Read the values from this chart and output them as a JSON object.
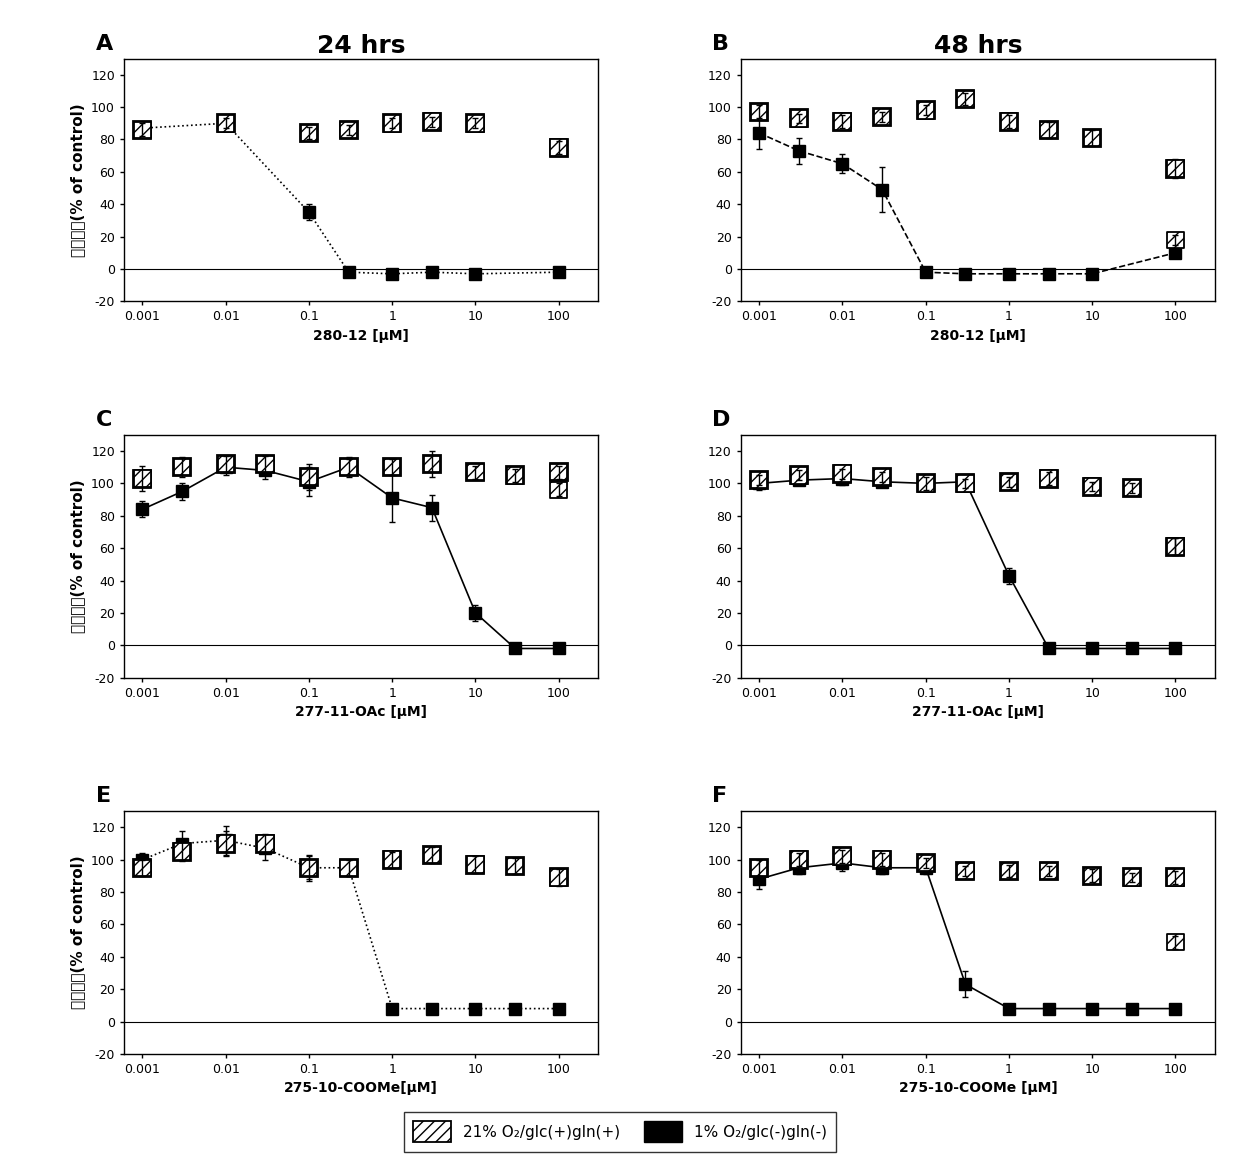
{
  "panels": [
    {
      "label": "A",
      "col_title": "24 hrs",
      "xlabel": "280-12 [μM]",
      "ylim": [
        -20,
        130
      ],
      "yticks": [
        -20,
        0,
        20,
        40,
        60,
        80,
        100,
        120
      ],
      "s1_x": [
        0.001,
        0.01,
        0.1,
        0.3,
        1,
        3,
        10,
        100
      ],
      "s1_y": [
        86,
        90,
        84,
        86,
        90,
        91,
        90,
        75
      ],
      "s1_e": [
        4,
        3,
        4,
        3,
        3,
        3,
        3,
        4
      ],
      "s2_x": [
        0.001,
        0.01,
        0.1,
        0.3,
        1,
        3,
        10,
        100
      ],
      "s2_y": [
        87,
        90,
        35,
        -2,
        -3,
        -2,
        -3,
        -2
      ],
      "s2_e": [
        4,
        3,
        5,
        1,
        1,
        1,
        1,
        1
      ],
      "s1_lone_x": [],
      "s1_lone_y": [],
      "s1_lone_e": [],
      "s2_line": "dotted",
      "has_s1_lone": false
    },
    {
      "label": "B",
      "col_title": "48 hrs",
      "xlabel": "280-12 [μM]",
      "ylim": [
        -20,
        130
      ],
      "yticks": [
        -20,
        0,
        20,
        40,
        60,
        80,
        100,
        120
      ],
      "s1_x": [
        0.001,
        0.003,
        0.01,
        0.03,
        0.1,
        0.3,
        1,
        3,
        10,
        100
      ],
      "s1_y": [
        97,
        93,
        91,
        94,
        98,
        105,
        91,
        86,
        81,
        62
      ],
      "s1_e": [
        4,
        3,
        4,
        3,
        3,
        4,
        4,
        5,
        5,
        6
      ],
      "s2_x": [
        0.001,
        0.003,
        0.01,
        0.03,
        0.1,
        0.3,
        1,
        3,
        10,
        100
      ],
      "s2_y": [
        84,
        73,
        65,
        49,
        -2,
        -3,
        -3,
        -3,
        -3,
        10
      ],
      "s2_e": [
        10,
        8,
        6,
        14,
        1,
        1,
        1,
        1,
        1,
        3
      ],
      "s1_lone_x": [
        100
      ],
      "s1_lone_y": [
        18
      ],
      "s1_lone_e": [
        3
      ],
      "s2_line": "dashed",
      "has_s1_lone": false
    },
    {
      "label": "C",
      "col_title": "",
      "xlabel": "277-11-OAc [μM]",
      "ylim": [
        -20,
        130
      ],
      "yticks": [
        -20,
        0,
        20,
        40,
        60,
        80,
        100,
        120
      ],
      "s1_x": [
        0.001,
        0.003,
        0.01,
        0.03,
        0.1,
        0.3,
        1,
        3,
        10,
        30,
        100
      ],
      "s1_y": [
        103,
        110,
        112,
        112,
        104,
        110,
        110,
        112,
        107,
        105,
        107
      ],
      "s1_e": [
        8,
        6,
        5,
        5,
        8,
        5,
        5,
        8,
        4,
        4,
        4
      ],
      "s2_x": [
        0.001,
        0.003,
        0.01,
        0.03,
        0.1,
        0.3,
        1,
        3,
        10,
        30,
        100
      ],
      "s2_y": [
        84,
        95,
        110,
        108,
        101,
        110,
        91,
        85,
        20,
        -2,
        -2
      ],
      "s2_e": [
        5,
        5,
        5,
        5,
        9,
        6,
        15,
        8,
        5,
        1,
        1
      ],
      "s1_lone_x": [
        100
      ],
      "s1_lone_y": [
        96
      ],
      "s1_lone_e": [
        4
      ],
      "s2_line": "solid",
      "has_s1_lone": false
    },
    {
      "label": "D",
      "col_title": "",
      "xlabel": "277-11-OAc [μM]",
      "ylim": [
        -20,
        130
      ],
      "yticks": [
        -20,
        0,
        20,
        40,
        60,
        80,
        100,
        120
      ],
      "s1_x": [
        0.001,
        0.003,
        0.01,
        0.03,
        0.1,
        0.3,
        1,
        3,
        10,
        30,
        100
      ],
      "s1_y": [
        102,
        105,
        106,
        104,
        100,
        100,
        101,
        103,
        98,
        97,
        61
      ],
      "s1_e": [
        3,
        3,
        3,
        3,
        4,
        3,
        3,
        4,
        3,
        3,
        5
      ],
      "s2_x": [
        0.001,
        0.003,
        0.01,
        0.03,
        0.1,
        0.3,
        1,
        3,
        10,
        30,
        100
      ],
      "s2_y": [
        100,
        102,
        103,
        101,
        100,
        101,
        43,
        -2,
        -2,
        -2,
        -2
      ],
      "s2_e": [
        4,
        3,
        4,
        3,
        4,
        3,
        5,
        1,
        1,
        1,
        1
      ],
      "s1_lone_x": [
        100
      ],
      "s1_lone_y": [
        61
      ],
      "s1_lone_e": [
        5
      ],
      "s2_line": "solid",
      "has_s1_lone": false
    },
    {
      "label": "E",
      "col_title": "",
      "xlabel": "275-10-COOMe[μM]",
      "ylim": [
        -20,
        130
      ],
      "yticks": [
        -20,
        0,
        20,
        40,
        60,
        80,
        100,
        120
      ],
      "s1_x": [
        0.001,
        0.003,
        0.01,
        0.03,
        0.1,
        0.3,
        1,
        3,
        10,
        30,
        100
      ],
      "s1_y": [
        95,
        105,
        110,
        110,
        95,
        95,
        100,
        103,
        97,
        96,
        89
      ],
      "s1_e": [
        5,
        6,
        8,
        6,
        8,
        5,
        5,
        5,
        5,
        5,
        5
      ],
      "s2_x": [
        0.001,
        0.003,
        0.01,
        0.03,
        0.1,
        0.3,
        1,
        3,
        10,
        30,
        100
      ],
      "s2_y": [
        100,
        110,
        112,
        107,
        95,
        95,
        8,
        8,
        8,
        8,
        8
      ],
      "s2_e": [
        4,
        8,
        9,
        7,
        7,
        5,
        2,
        2,
        2,
        2,
        2
      ],
      "s1_lone_x": [],
      "s1_lone_y": [],
      "s1_lone_e": [],
      "s2_line": "dotted",
      "has_s1_lone": false
    },
    {
      "label": "F",
      "col_title": "",
      "xlabel": "275-10-COOMe [μM]",
      "ylim": [
        -20,
        130
      ],
      "yticks": [
        -20,
        0,
        20,
        40,
        60,
        80,
        100,
        120
      ],
      "s1_x": [
        0.001,
        0.003,
        0.01,
        0.03,
        0.1,
        0.3,
        1,
        3,
        10,
        30,
        100
      ],
      "s1_y": [
        95,
        100,
        102,
        100,
        98,
        93,
        93,
        93,
        90,
        89,
        89
      ],
      "s1_e": [
        5,
        4,
        4,
        4,
        3,
        3,
        4,
        3,
        4,
        3,
        4
      ],
      "s2_x": [
        0.001,
        0.003,
        0.01,
        0.03,
        0.1,
        0.3,
        1,
        3,
        10,
        30,
        100
      ],
      "s2_y": [
        88,
        95,
        98,
        95,
        95,
        23,
        8,
        8,
        8,
        8,
        8
      ],
      "s2_e": [
        6,
        4,
        5,
        4,
        4,
        8,
        2,
        2,
        2,
        2,
        2
      ],
      "s1_lone_x": [
        100
      ],
      "s1_lone_y": [
        49
      ],
      "s1_lone_e": [
        4
      ],
      "s2_line": "solid",
      "has_s1_lone": true
    }
  ],
  "ylabel": "细胞存活(% of control)",
  "legend_label1": "21% O₂/glc(+)gln(+)",
  "legend_label2": "1% O₂/glc(-)gln(-)",
  "bg_color": "#ffffff",
  "fontsize_title": 18,
  "fontsize_label": 10,
  "fontsize_tick": 9,
  "fontsize_panel": 14,
  "fontsize_ylabel": 11
}
